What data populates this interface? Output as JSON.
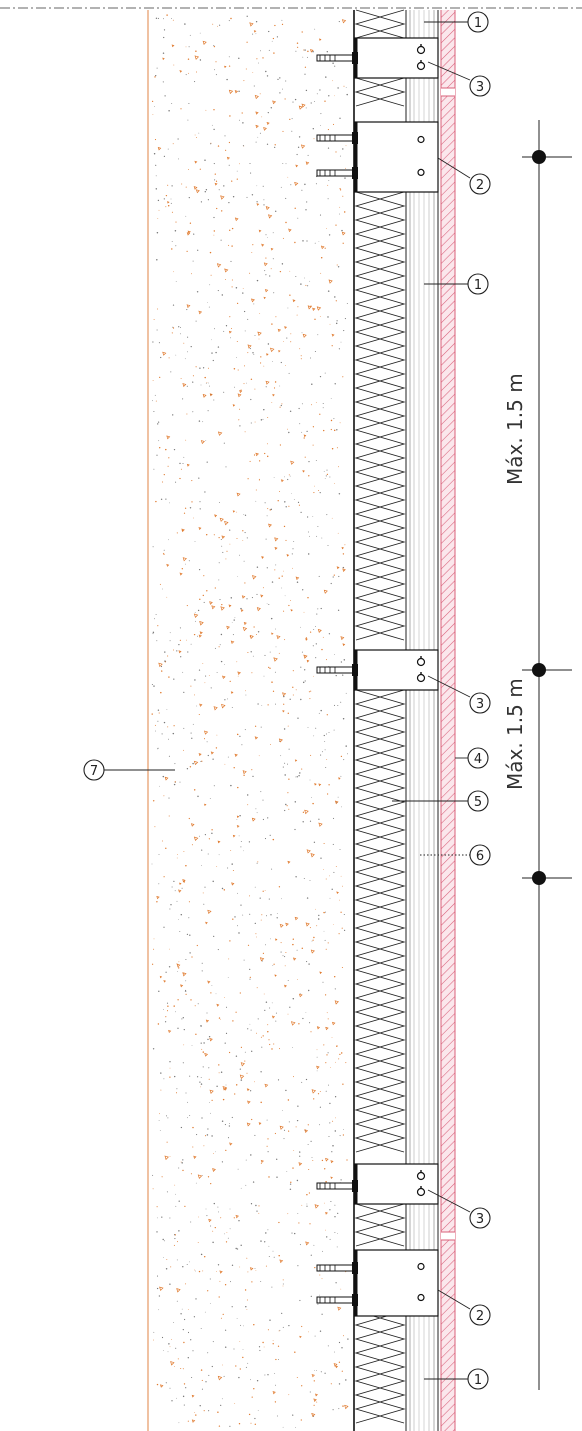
{
  "callouts": {
    "c1_top": "1",
    "c3_top": "3",
    "c2_top": "2",
    "c1_mid": "1",
    "c3_mid": "3",
    "c4": "4",
    "c5": "5",
    "c6": "6",
    "c7": "7",
    "c3_bottom": "3",
    "c2_bottom": "2",
    "c1_bottom": "1"
  },
  "dimensions": {
    "upper": "Máx. 1.5 m",
    "lower": "Máx. 1.5 m"
  },
  "colors": {
    "concrete_edge": "#e8a070",
    "concrete_speckle": "#e07a2e",
    "cladding_hatch": "#d9607a",
    "cladding_fill": "#fbe7ec",
    "line": "#222222"
  }
}
